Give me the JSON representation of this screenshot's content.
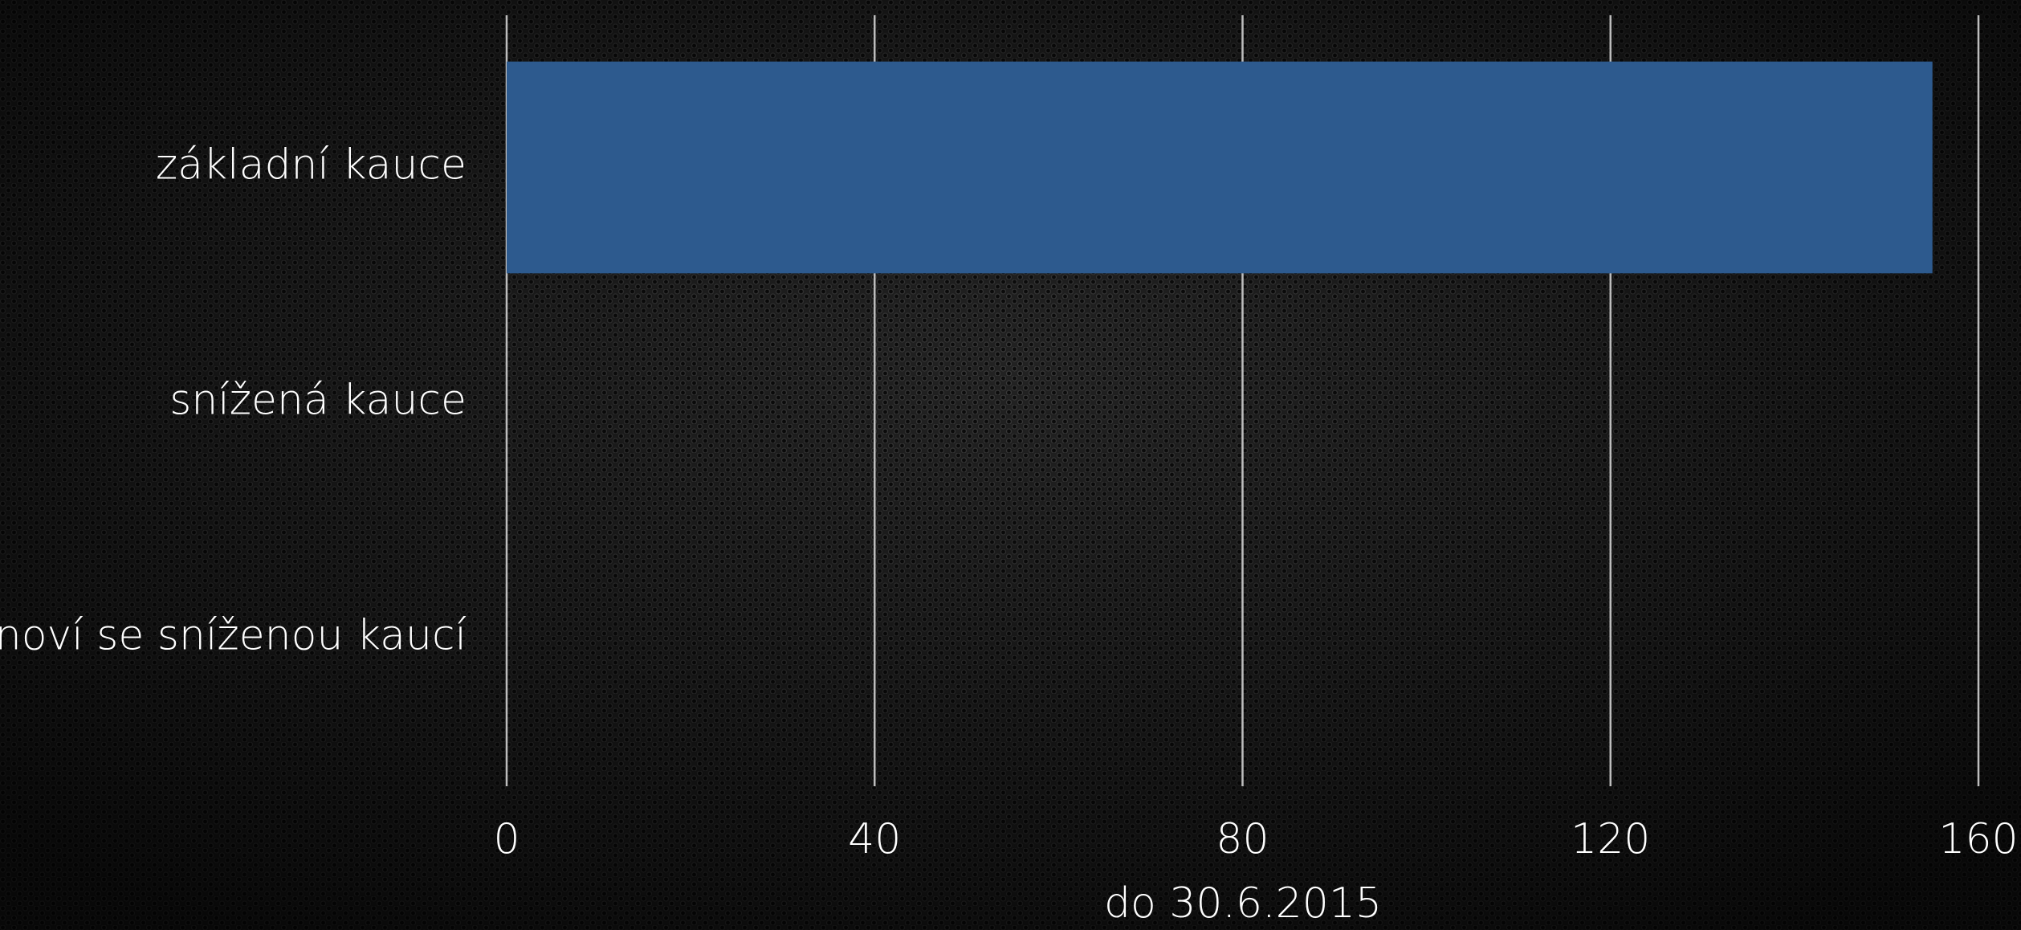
{
  "chart_data": {
    "type": "bar",
    "orientation": "horizontal",
    "categories": [
      "základní kauce",
      "snížená kauce",
      "noví se sníženou kaucí"
    ],
    "values": [
      155,
      0,
      0
    ],
    "color": "#2d5a8e",
    "xlabel": "do 30.6.2015",
    "xlim": [
      0,
      160
    ],
    "xticks": [
      0,
      40,
      80,
      120,
      160
    ],
    "grid": true
  }
}
